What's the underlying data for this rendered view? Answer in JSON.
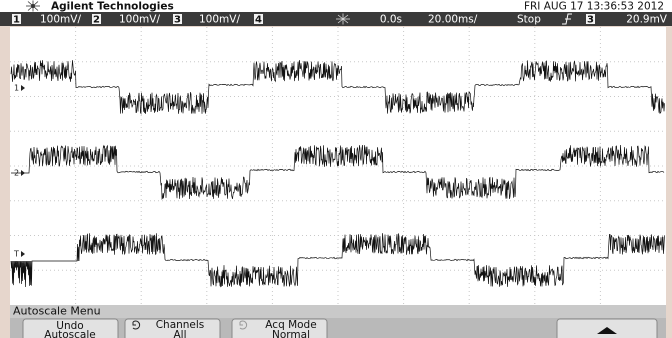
{
  "header": {
    "brand": "Agilent Technologies",
    "datetime": "FRI AUG 17 13:36:53 2012"
  },
  "status_bar": {
    "channels": [
      {
        "number": "1",
        "scale": "100mV/"
      },
      {
        "number": "2",
        "scale": "100mV/"
      },
      {
        "number": "3",
        "scale": "100mV/"
      },
      {
        "number": "4"
      }
    ],
    "time_offset": "0.0s",
    "timebase": "20.00ms/",
    "run_state": "Stop",
    "trigger_source": "3",
    "trigger_level": "20.9mV"
  },
  "markers": [
    "1",
    "2",
    "T",
    "3"
  ],
  "menu": {
    "title": "Autoscale Menu",
    "softkeys": [
      {
        "lines": [
          "Undo",
          "Autoscale"
        ]
      },
      {
        "lines": [
          "Channels",
          "All"
        ]
      },
      {
        "lines": [
          "Acq Mode",
          "Normal"
        ]
      }
    ]
  }
}
